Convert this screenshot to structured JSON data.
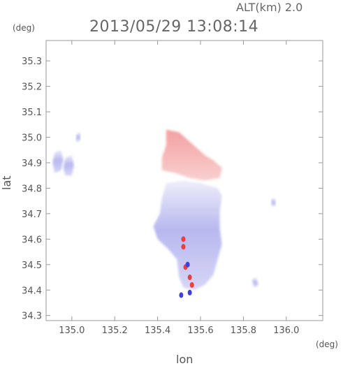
{
  "header": {
    "altitude_label": "ALT(km)  2.0",
    "timestamp": "2013/05/29 13:08:14"
  },
  "axes": {
    "y_unit": "(deg)",
    "x_unit": "(deg)",
    "y_label": "lat",
    "x_label": "lon"
  },
  "chart_data": {
    "type": "heatmap",
    "title": "2013/05/29 13:08:14",
    "subtitle": "ALT(km)  2.0",
    "xlabel": "lon",
    "ylabel": "lat",
    "x_unit": "deg",
    "y_unit": "deg",
    "xlim": [
      134.88,
      136.17
    ],
    "ylim": [
      34.28,
      35.38
    ],
    "x_ticks": [
      135.0,
      135.2,
      135.4,
      135.6,
      135.8,
      136.0
    ],
    "x_tick_labels": [
      "135.0",
      "135.2",
      "135.4",
      "135.6",
      "135.8",
      "136.0"
    ],
    "y_ticks": [
      34.3,
      34.4,
      34.5,
      34.6,
      34.7,
      34.8,
      34.9,
      35.0,
      35.1,
      35.2,
      35.3
    ],
    "y_tick_labels": [
      "34.3",
      "34.4",
      "34.5",
      "34.6",
      "34.7",
      "34.8",
      "34.9",
      "35.0",
      "35.1",
      "35.2",
      "35.3"
    ],
    "grid": false,
    "colors": {
      "positive": "#f4a0a0",
      "negative": "#a8a8f0",
      "strong_positive": "#e84040",
      "strong_negative": "#4040e0"
    },
    "regions": [
      {
        "sign": "positive",
        "polygon": [
          [
            135.44,
            35.03
          ],
          [
            135.5,
            35.02
          ],
          [
            135.54,
            34.99
          ],
          [
            135.58,
            34.96
          ],
          [
            135.62,
            34.93
          ],
          [
            135.66,
            34.91
          ],
          [
            135.7,
            34.88
          ],
          [
            135.69,
            34.84
          ],
          [
            135.62,
            34.83
          ],
          [
            135.55,
            34.84
          ],
          [
            135.48,
            34.86
          ],
          [
            135.42,
            34.87
          ],
          [
            135.42,
            34.92
          ],
          [
            135.44,
            34.97
          ]
        ]
      },
      {
        "sign": "negative",
        "polygon": [
          [
            135.44,
            34.82
          ],
          [
            135.52,
            34.83
          ],
          [
            135.6,
            34.82
          ],
          [
            135.68,
            34.8
          ],
          [
            135.7,
            34.77
          ],
          [
            135.69,
            34.71
          ],
          [
            135.69,
            34.64
          ],
          [
            135.7,
            34.58
          ],
          [
            135.68,
            34.52
          ],
          [
            135.66,
            34.46
          ],
          [
            135.62,
            34.42
          ],
          [
            135.57,
            34.4
          ],
          [
            135.52,
            34.41
          ],
          [
            135.5,
            34.45
          ],
          [
            135.49,
            34.52
          ],
          [
            135.45,
            34.56
          ],
          [
            135.4,
            34.6
          ],
          [
            135.38,
            34.65
          ],
          [
            135.41,
            34.7
          ],
          [
            135.42,
            34.76
          ]
        ]
      },
      {
        "sign": "negative",
        "polygon": [
          [
            134.92,
            34.94
          ],
          [
            134.95,
            34.95
          ],
          [
            134.96,
            34.91
          ],
          [
            134.95,
            34.87
          ],
          [
            134.92,
            34.86
          ],
          [
            134.91,
            34.9
          ]
        ]
      },
      {
        "sign": "negative",
        "polygon": [
          [
            134.97,
            34.92
          ],
          [
            135.0,
            34.93
          ],
          [
            135.01,
            34.89
          ],
          [
            135.0,
            34.85
          ],
          [
            134.97,
            34.85
          ],
          [
            134.96,
            34.88
          ]
        ]
      },
      {
        "sign": "negative",
        "polygon": [
          [
            135.02,
            35.01
          ],
          [
            135.04,
            35.02
          ],
          [
            135.04,
            34.99
          ],
          [
            135.02,
            34.98
          ]
        ]
      },
      {
        "sign": "negative",
        "polygon": [
          [
            135.84,
            34.44
          ],
          [
            135.86,
            34.45
          ],
          [
            135.87,
            34.42
          ],
          [
            135.85,
            34.41
          ]
        ]
      },
      {
        "sign": "negative",
        "polygon": [
          [
            135.93,
            34.76
          ],
          [
            135.95,
            34.76
          ],
          [
            135.95,
            34.73
          ],
          [
            135.93,
            34.73
          ]
        ]
      }
    ],
    "spots": [
      {
        "sign": "strong_positive",
        "lon": 135.52,
        "lat": 34.6
      },
      {
        "sign": "strong_positive",
        "lon": 135.52,
        "lat": 34.57
      },
      {
        "sign": "strong_positive",
        "lon": 135.55,
        "lat": 34.45
      },
      {
        "sign": "strong_positive",
        "lon": 135.56,
        "lat": 34.42
      },
      {
        "sign": "strong_positive",
        "lon": 135.53,
        "lat": 34.49
      },
      {
        "sign": "strong_negative",
        "lon": 135.54,
        "lat": 34.5
      },
      {
        "sign": "strong_negative",
        "lon": 135.51,
        "lat": 34.38
      },
      {
        "sign": "strong_negative",
        "lon": 135.55,
        "lat": 34.39
      }
    ]
  }
}
